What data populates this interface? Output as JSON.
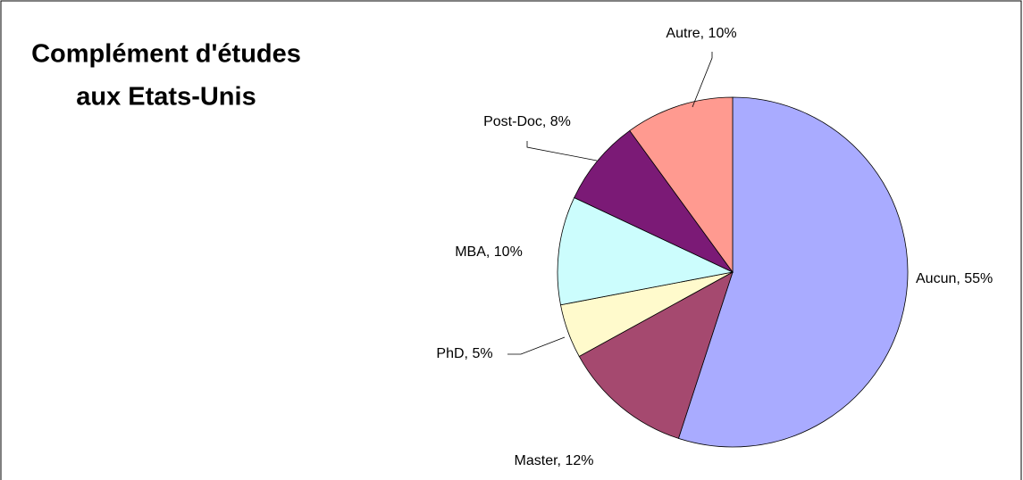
{
  "chart_data": {
    "type": "pie",
    "title": [
      "Complément d'études",
      "aux Etats-Unis"
    ],
    "values": [
      55,
      12,
      5,
      10,
      8,
      10
    ],
    "value_labels": [
      "Aucun, 55%",
      "Master, 12%",
      "PhD, 5%",
      "MBA, 10%",
      "Post-Doc, 8%",
      "Autre, 10%"
    ],
    "colors": [
      "#a9abff",
      "#a5496f",
      "#fffacc",
      "#ccfdfd",
      "#7b1a76",
      "#ff9a90"
    ]
  }
}
